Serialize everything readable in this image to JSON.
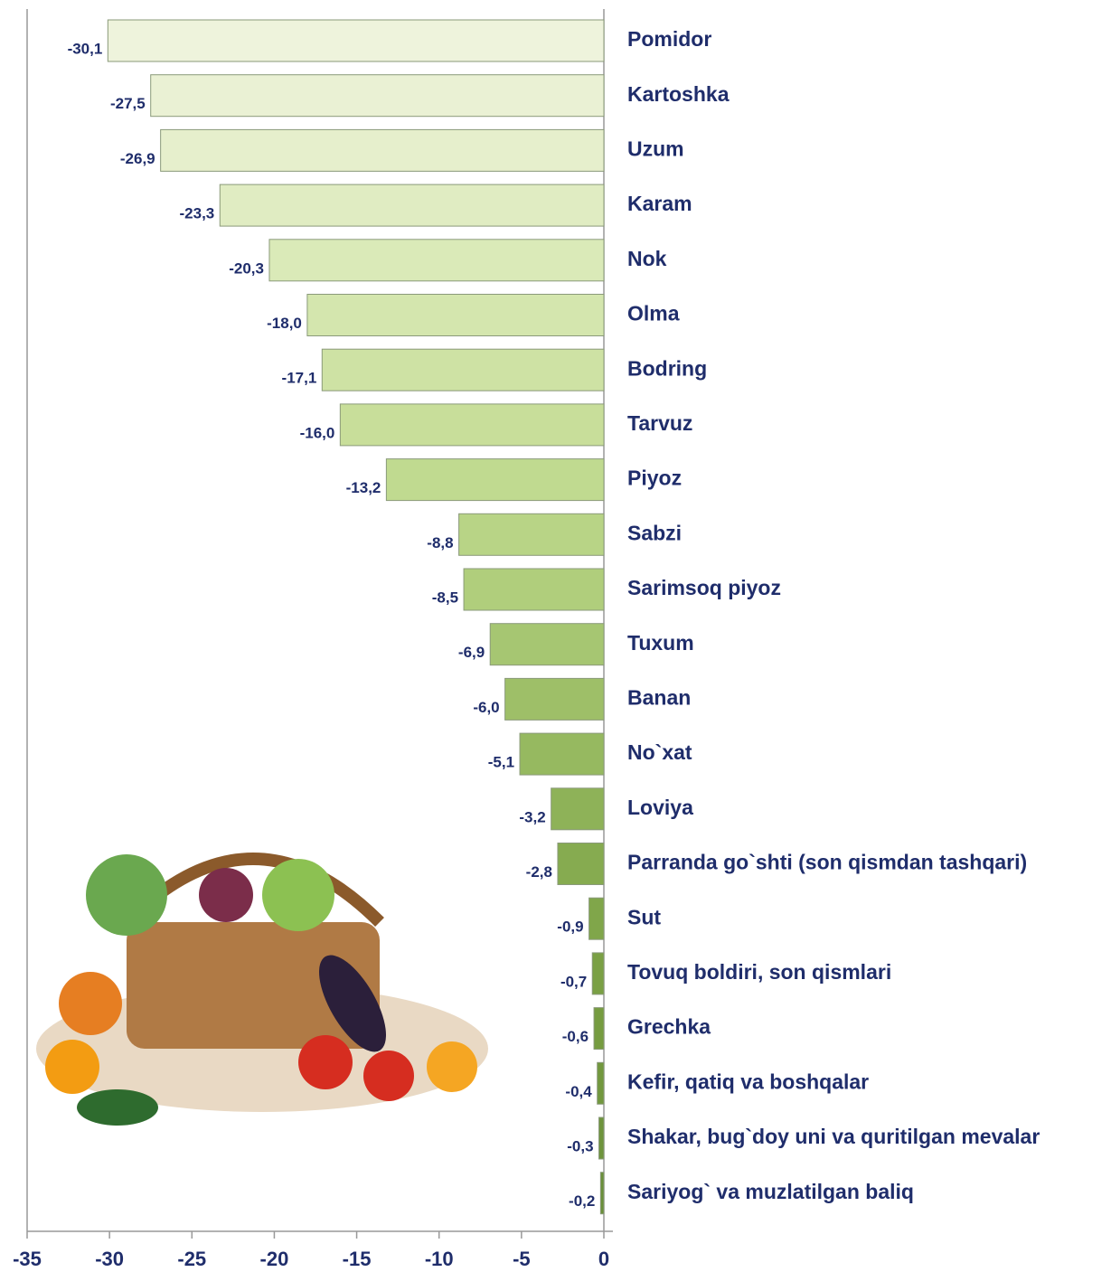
{
  "chart_data": {
    "type": "hbar",
    "categories": [
      "Pomidor",
      "Kartoshka",
      "Uzum",
      "Karam",
      "Nok",
      "Olma",
      "Bodring",
      "Tarvuz",
      "Piyoz",
      "Sabzi",
      "Sarimsoq piyoz",
      "Tuxum",
      "Banan",
      "No`xat",
      "Loviya",
      "Parranda go`shti (son qismdan tashqari)",
      "Sut",
      "Tovuq boldiri, son qismlari",
      "Grechka",
      "Kefir, qatiq va boshqalar",
      "Shakar, bug`doy uni va quritilgan mevalar",
      "Sariyog` va muzlatilgan baliq"
    ],
    "values": [
      -30.1,
      -27.5,
      -26.9,
      -23.3,
      -20.3,
      -18.0,
      -17.1,
      -16.0,
      -13.2,
      -8.8,
      -8.5,
      -6.9,
      -6.0,
      -5.1,
      -3.2,
      -2.8,
      -0.9,
      -0.7,
      -0.6,
      -0.4,
      -0.3,
      -0.2
    ],
    "value_labels": [
      "-30,1",
      "-27,5",
      "-26,9",
      "-23,3",
      "-20,3",
      "-18,0",
      "-17,1",
      "-16,0",
      "-13,2",
      "-8,8",
      "-8,5",
      "-6,9",
      "-6,0",
      "-5,1",
      "-3,2",
      "-2,8",
      "-0,9",
      "-0,7",
      "-0,6",
      "-0,4",
      "-0,3",
      "-0,2"
    ],
    "colors": [
      "#eef3dc",
      "#eaf1d4",
      "#e6efcc",
      "#e0ecc2",
      "#daeab8",
      "#d4e6ae",
      "#cee2a4",
      "#c8de9a",
      "#c0da90",
      "#b8d486",
      "#b0ce7c",
      "#a6c672",
      "#9ebf68",
      "#96b960",
      "#8eb258",
      "#86ab50",
      "#80a64a",
      "#7aa044",
      "#769c40",
      "#72983e",
      "#6e943c",
      "#6a903a"
    ],
    "xlim": [
      -35,
      0
    ],
    "xticks": [
      -35,
      -30,
      -25,
      -20,
      -15,
      -10,
      -5,
      0
    ]
  }
}
